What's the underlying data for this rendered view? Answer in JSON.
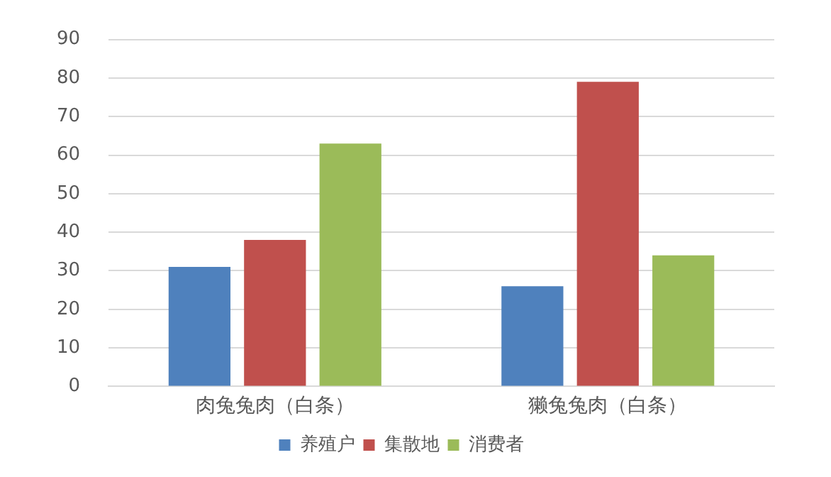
{
  "chart_data": {
    "type": "bar",
    "categories": [
      "肉兔兔肉（白条）",
      "獭兔兔肉（白条）"
    ],
    "series": [
      {
        "name": "养殖户",
        "color": "#4f81bd",
        "values": [
          31,
          26
        ]
      },
      {
        "name": "集散地",
        "color": "#c0504d",
        "values": [
          38,
          79
        ]
      },
      {
        "name": "消费者",
        "color": "#9bbb59",
        "values": [
          63,
          34
        ]
      }
    ],
    "ylim": [
      0,
      90
    ],
    "yticks": [
      0,
      10,
      20,
      30,
      40,
      50,
      60,
      70,
      80,
      90
    ],
    "grid": "y",
    "legend": "bottom"
  }
}
